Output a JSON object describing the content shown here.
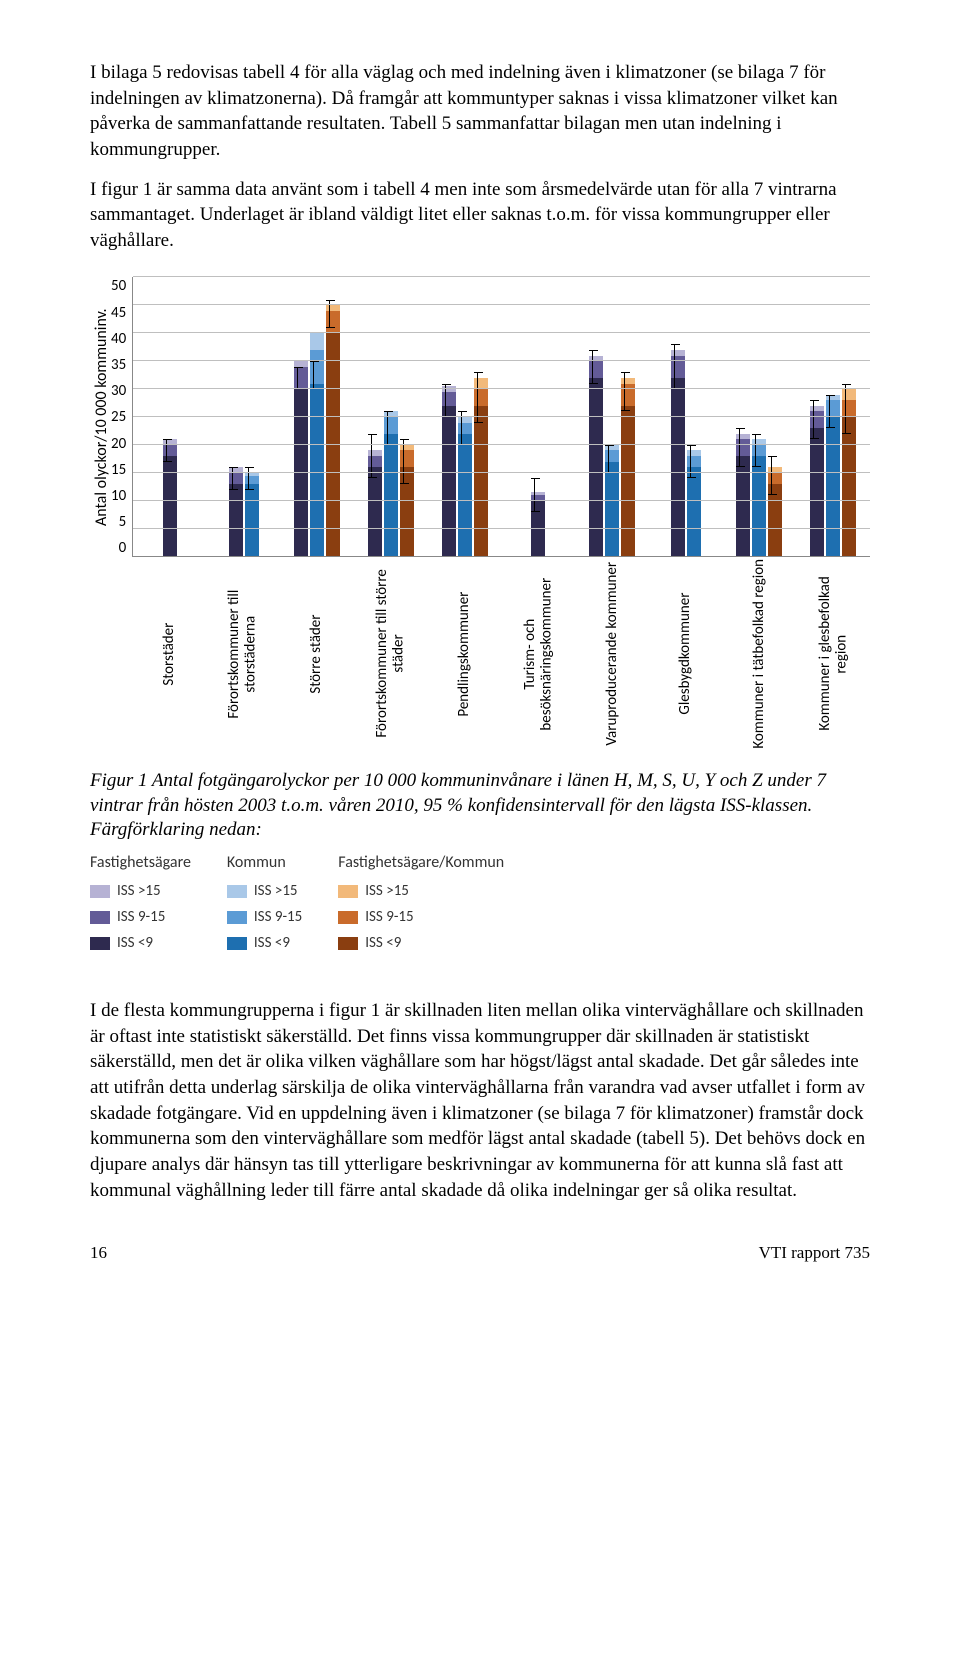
{
  "paragraphs": {
    "p1": "I bilaga 5 redovisas tabell 4 för alla väglag och med indelning även i klimatzoner (se bilaga 7 för indelningen av klimatzonerna). Då framgår att kommuntyper saknas i vissa klimatzoner vilket kan påverka de sammanfattande resultaten. Tabell 5 sammanfattar bilagan men utan indelning i kommungrupper.",
    "p2": "I figur 1 är samma data använt som i tabell 4 men inte som årsmedelvärde utan för alla 7 vintrarna sammantaget. Underlaget är ibland väldigt litet eller saknas t.o.m. för vissa kommungrupper eller väghållare.",
    "p3": "I de flesta kommungrupperna i figur 1 är skillnaden liten mellan olika vinterväghållare och skillnaden är oftast inte statistiskt säkerställd. Det finns vissa kommungrupper där skillnaden är statistiskt säkerställd, men det är olika vilken väghållare som har högst/lägst antal skadade. Det går således inte att utifrån detta underlag särskilja de olika vinterväghållarna från varandra vad avser utfallet i form av skadade fotgängare. Vid en uppdelning även i klimatzoner (se bilaga 7 för klimatzoner) framstår dock kommunerna som den vinterväghållare som medför lägst antal skadade (tabell 5). Det behövs dock en djupare analys där hänsyn tas till ytterligare beskrivningar av kommunerna för att kunna slå fast att kommunal väghållning leder till färre antal skadade då olika indelningar ger så olika resultat."
  },
  "caption": "Figur 1  Antal fotgängarolyckor per 10 000 kommuninvånare i länen H, M, S, U, Y och Z under 7 vintrar från hösten 2003 t.o.m. våren 2010, 95 % konfidensintervall för den lägsta ISS-klassen. Färgförklaring nedan:",
  "chart": {
    "type": "bar",
    "y_label": "Antal olyckor/10 000 kommuninv.",
    "y_max": 50,
    "y_ticks": [
      0,
      5,
      10,
      15,
      20,
      25,
      30,
      35,
      40,
      45,
      50
    ],
    "colors": {
      "fast_low": "#2e2a4f",
      "fast_mid": "#635b97",
      "fast_high": "#b6b2d4",
      "komm_low": "#1e6fb0",
      "komm_mid": "#5b9bd5",
      "komm_high": "#a9c8e8",
      "fk_low": "#8a3e10",
      "fk_mid": "#c96b2b",
      "fk_high": "#f2b97a",
      "grid": "#bfbfbf",
      "axis": "#888888"
    },
    "categories": [
      "Storstäder",
      "Förortskommuner till\nstorstäderna",
      "Större städer",
      "Förortskommuner till större\nstäder",
      "Pendlingskommuner",
      "Turism- och\nbesöksnäringskommuner",
      "Varuproducerande kommuner",
      "Glesbygdkommuner",
      "Kommuner i tätbefolkad region",
      "Kommuner i glesbefolkad\nregion"
    ],
    "groups": [
      {
        "fast": [
          18,
          2,
          1
        ],
        "komm": null,
        "fk": null,
        "err": {
          "fast": [
            17,
            21
          ]
        }
      },
      {
        "fast": [
          13,
          2,
          1
        ],
        "komm": [
          13,
          1.5,
          0.5
        ],
        "fk": null,
        "err": {
          "fast": [
            12,
            16
          ],
          "komm": [
            12,
            16
          ]
        }
      },
      {
        "fast": [
          30,
          4,
          1
        ],
        "komm": [
          31,
          6,
          3
        ],
        "fk": [
          40,
          4,
          1
        ],
        "err": {
          "fast": [
            30,
            34
          ],
          "komm": [
            30,
            35
          ],
          "fk": [
            41,
            46
          ]
        }
      },
      {
        "fast": [
          16,
          2,
          1
        ],
        "komm": [
          22,
          3,
          1
        ],
        "fk": [
          16,
          3,
          1
        ],
        "err": {
          "fast": [
            14,
            22
          ],
          "komm": [
            20,
            26
          ],
          "fk": [
            13,
            21
          ]
        }
      },
      {
        "fast": [
          27,
          2.5,
          1
        ],
        "komm": [
          22,
          2,
          1
        ],
        "fk": [
          27,
          3,
          2
        ],
        "err": {
          "fast": [
            25,
            31
          ],
          "komm": [
            20,
            26
          ],
          "fk": [
            24,
            33
          ]
        }
      },
      {
        "fast": [
          10,
          1,
          0.5
        ],
        "komm": null,
        "fk": null,
        "err": {
          "fast": [
            8,
            14
          ]
        }
      },
      {
        "fast": [
          32,
          3,
          1
        ],
        "komm": [
          17,
          2,
          1
        ],
        "fk": [
          27,
          4,
          1
        ],
        "err": {
          "fast": [
            31,
            37
          ],
          "komm": [
            15,
            20
          ],
          "fk": [
            26,
            33
          ]
        }
      },
      {
        "fast": [
          32,
          4,
          1
        ],
        "komm": [
          16,
          2,
          1
        ],
        "fk": null,
        "err": {
          "fast": [
            30,
            38
          ],
          "komm": [
            14,
            20
          ]
        }
      },
      {
        "fast": [
          18,
          3,
          1
        ],
        "komm": [
          18,
          2,
          1
        ],
        "fk": [
          13,
          2,
          1
        ],
        "err": {
          "fast": [
            16,
            23
          ],
          "komm": [
            16,
            22
          ],
          "fk": [
            11,
            18
          ]
        }
      },
      {
        "fast": [
          23,
          3,
          1
        ],
        "komm": [
          25,
          3,
          1
        ],
        "fk": [
          25,
          3,
          2
        ],
        "err": {
          "fast": [
            21,
            28
          ],
          "komm": [
            23,
            29
          ],
          "fk": [
            22,
            31
          ]
        }
      }
    ]
  },
  "legend": {
    "columns": [
      {
        "head": "Fastighetsägare",
        "rows": [
          {
            "color_key": "fast_high",
            "text": "ISS >15"
          },
          {
            "color_key": "fast_mid",
            "text": "ISS 9-15"
          },
          {
            "color_key": "fast_low",
            "text": "ISS <9"
          }
        ]
      },
      {
        "head": "Kommun",
        "rows": [
          {
            "color_key": "komm_high",
            "text": "ISS >15"
          },
          {
            "color_key": "komm_mid",
            "text": "ISS 9-15"
          },
          {
            "color_key": "komm_low",
            "text": "ISS <9"
          }
        ]
      },
      {
        "head": "Fastighetsägare/Kommun",
        "rows": [
          {
            "color_key": "fk_high",
            "text": "ISS >15"
          },
          {
            "color_key": "fk_mid",
            "text": "ISS 9-15"
          },
          {
            "color_key": "fk_low",
            "text": "ISS <9"
          }
        ]
      }
    ]
  },
  "footer": {
    "page": "16",
    "doc": "VTI rapport 735"
  }
}
